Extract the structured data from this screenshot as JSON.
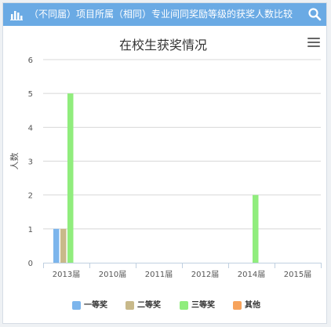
{
  "header": {
    "title": "（不同届）项目所属（相同）专业间同奖励等级的获奖人数比较"
  },
  "colors": {
    "header_bg": "#6aaae4",
    "series": [
      "#7cb5ec",
      "#c8b98a",
      "#90ed7d",
      "#f7a35c"
    ]
  },
  "chart_data": {
    "type": "bar",
    "title": "在校生获奖情况",
    "xlabel": "",
    "ylabel": "人数",
    "ylim": [
      0,
      6
    ],
    "yticks": [
      0,
      1,
      2,
      3,
      4,
      5,
      6
    ],
    "categories": [
      "2013届",
      "2010届",
      "2011届",
      "2012届",
      "2014届",
      "2015届"
    ],
    "series": [
      {
        "name": "一等奖",
        "values": [
          1,
          0,
          0,
          0,
          0,
          0
        ]
      },
      {
        "name": "二等奖",
        "values": [
          1,
          0,
          0,
          0,
          0,
          0
        ]
      },
      {
        "name": "三等奖",
        "values": [
          5,
          0,
          0,
          0,
          2,
          0
        ]
      },
      {
        "name": "其他",
        "values": [
          0,
          0,
          0,
          0,
          0,
          0
        ]
      }
    ],
    "grid": true,
    "legend_position": "bottom"
  }
}
